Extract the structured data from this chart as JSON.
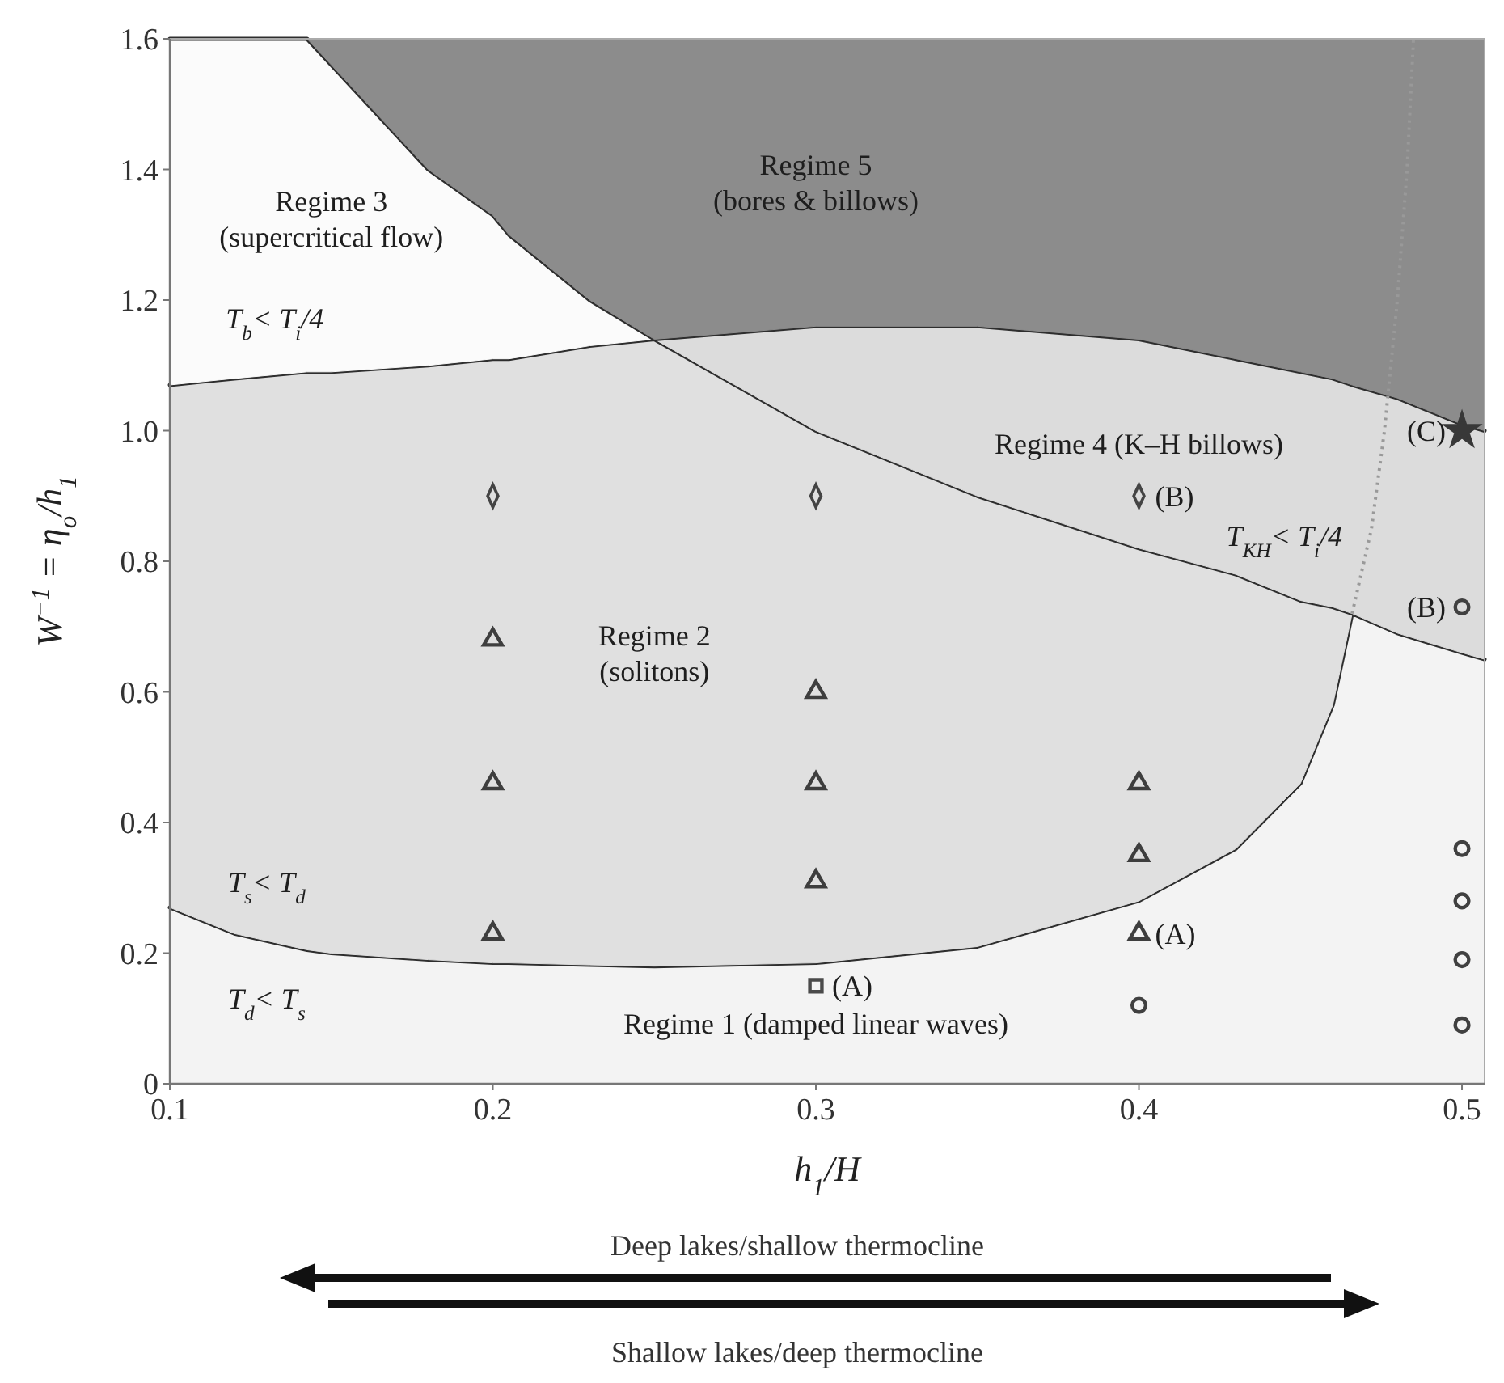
{
  "chart_data": {
    "type": "scatter",
    "xlabel": "h$_{1}$/H",
    "ylabel": "W$^{−1}$ = η$_{o}$/h$_{1}$",
    "xlim": [
      0.1,
      0.507
    ],
    "ylim": [
      0,
      1.6
    ],
    "xticks": [
      0.1,
      0.2,
      0.3,
      0.4,
      0.5
    ],
    "yticks": [
      0,
      0.2,
      0.4,
      0.6,
      0.8,
      {
        "value": 1,
        "label": "1.0"
      },
      1.2,
      1.4,
      1.6
    ],
    "grid": false,
    "legend": false,
    "stacked": true,
    "x": [
      0.1,
      0.12,
      0.1425,
      0.15,
      0.18,
      0.2,
      0.205,
      0.23,
      0.25,
      0.3,
      0.35,
      0.4,
      0.43,
      0.45,
      0.46,
      0.466,
      0.48,
      0.5,
      0.507
    ],
    "series": [
      {
        "type": "area",
        "name": "Regime 1 (damped linear waves)",
        "color": "#f3f3f3",
        "line_style": "solid",
        "values": [
          0.27,
          0.23,
          0.205,
          0.2,
          0.19,
          0.185,
          0.185,
          0.182,
          0.18,
          0.185,
          0.21,
          0.28,
          0.36,
          0.46,
          0.58,
          0.72,
          0.69,
          0.66,
          0.65
        ]
      },
      {
        "type": "area",
        "name": "Regime 2\n(solitons)",
        "color": "#e0e0e0",
        "line_style": "solid",
        "values": [
          0.8,
          0.85,
          0.885,
          0.89,
          0.91,
          0.925,
          0.925,
          0.948,
          0.96,
          0.815,
          0.69,
          0.54,
          0.42,
          0.28,
          0.15,
          0,
          null,
          null,
          null
        ]
      },
      {
        "type": "area",
        "name": "Regime 4 (K–H billows)",
        "color": "#dcdcdc",
        "line_style": "solid",
        "values": [
          null,
          null,
          null,
          null,
          null,
          null,
          null,
          null,
          0,
          0.16,
          0.26,
          0.32,
          0.33,
          0.35,
          0.35,
          0.35,
          0.36,
          0.35,
          0.35
        ]
      },
      {
        "type": "area",
        "name": "Regime 3\n(supercritical flow)",
        "color": "#fbfbfb",
        "line_style": "solid",
        "values": [
          0.53,
          0.52,
          0.51,
          0.47,
          0.3,
          0.22,
          0.19,
          0.07,
          0,
          null,
          null,
          null,
          null,
          null,
          null,
          null,
          null,
          null,
          null
        ]
      },
      {
        "type": "area",
        "name": "Regime 5\n(bores & billows)",
        "color": "#8c8c8c",
        "values": [
          null,
          null,
          0,
          0.04,
          0.2,
          0.27,
          0.3,
          0.4,
          0.46,
          0.44,
          0.44,
          0.46,
          0.49,
          0.51,
          0.52,
          0.53,
          0.55,
          0.59,
          0.6
        ]
      },
      {
        "type": "line",
        "color": "#999999",
        "line_style": "dotted",
        "x": [
          0.466,
          0.472,
          0.476,
          0.48,
          0.483,
          0.485
        ],
        "values": [
          0.72,
          0.85,
          1.0,
          1.2,
          1.4,
          1.6
        ]
      },
      {
        "marker": "diamond",
        "color": "#444444",
        "x": [
          0.2,
          0.3,
          0.4
        ],
        "values": [
          0.9,
          0.9,
          0.9
        ]
      },
      {
        "marker": "triangle",
        "color": "#3e3e3e",
        "x": [
          0.2,
          0.2,
          0.2,
          0.3,
          0.3,
          0.3,
          0.4,
          0.4,
          0.4
        ],
        "values": [
          0.68,
          0.46,
          0.23,
          0.6,
          0.46,
          0.31,
          0.46,
          0.35,
          0.23
        ]
      },
      {
        "marker": "square",
        "color": "#4a4a4a",
        "x": [
          0.3
        ],
        "values": [
          0.15
        ]
      },
      {
        "marker": "circle",
        "color": "#404040",
        "x": [
          0.4,
          0.5,
          0.5,
          0.5,
          0.5,
          0.5
        ],
        "values": [
          0.12,
          0.73,
          0.36,
          0.28,
          0.19,
          0.09
        ]
      },
      {
        "marker": "star",
        "color": "#383838",
        "x": [
          0.5
        ],
        "values": [
          1.0
        ]
      }
    ],
    "annotations": [
      {
        "text": "T$_{b}$< T$_{i}$/4",
        "x": 0.1325,
        "y": 1.083
      },
      {
        "text": "(B)",
        "x": 0.4,
        "y": 0.9
      },
      {
        "text": "T$_{KH}$< T$_{i}$/4",
        "x": 0.445,
        "y": 0.75
      },
      {
        "text": "(C)",
        "x": 0.5,
        "y": 1.0
      },
      {
        "text": "(B)",
        "x": 0.5,
        "y": 0.73
      },
      {
        "text": "T$_{s}$< T$_{d}$",
        "x": 0.13,
        "y": 0.22
      },
      {
        "text": "T$_{d}$< T$_{s}$",
        "x": 0.13,
        "y": 0.22
      },
      {
        "text": "(A)",
        "x": 0.3,
        "y": 0.15
      },
      {
        "text": "(A)",
        "x": 0.4,
        "y": 0.23
      },
      "Deep lakes/shallow thermocline",
      "Shallow lakes/deep thermocline"
    ]
  }
}
